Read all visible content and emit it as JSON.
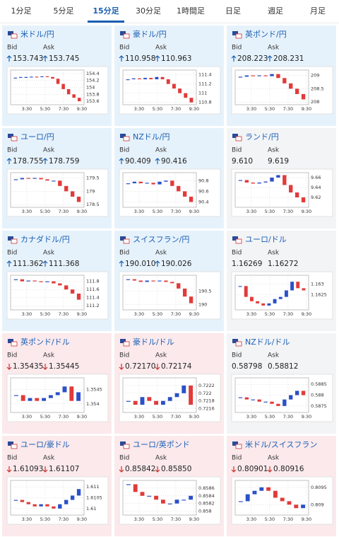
{
  "tabs": {
    "items": [
      "1分足",
      "5分足",
      "15分足",
      "30分足",
      "1時間足",
      "日足",
      "週足",
      "月足"
    ],
    "active": 2
  },
  "labels": {
    "bid": "Bid",
    "ask": "Ask"
  },
  "chart_xticks": [
    "3:30",
    "5:30",
    "7:30",
    "9:30"
  ],
  "tiles": [
    {
      "pair": "米ドル/円",
      "direction": "up",
      "bid": "153.743",
      "ask": "153.745",
      "ylim": [
        153.5,
        154.5
      ],
      "yticks": [
        154.4,
        154.2,
        154,
        153.8,
        153.6
      ],
      "closes": [
        154.28,
        154.3,
        154.3,
        154.31,
        154.3,
        154.32,
        154.3,
        154.25,
        154.1,
        153.95,
        153.8,
        153.7,
        153.6
      ]
    },
    {
      "pair": "豪ドル/円",
      "direction": "up",
      "bid": "110.958",
      "ask": "110.963",
      "ylim": [
        110.75,
        111.5
      ],
      "yticks": [
        111.4,
        111.2,
        111,
        110.8
      ],
      "closes": [
        111.3,
        111.32,
        111.3,
        111.33,
        111.3,
        111.35,
        111.3,
        111.2,
        111.1,
        111.0,
        110.9,
        110.8
      ]
    },
    {
      "pair": "英ポンド/円",
      "direction": "up",
      "bid": "208.223",
      "ask": "208.231",
      "ylim": [
        207.9,
        209.2
      ],
      "yticks": [
        209,
        208.5,
        208
      ],
      "closes": [
        208.95,
        209,
        208.98,
        209.0,
        208.97,
        209.05,
        208.9,
        208.7,
        208.5,
        208.3,
        208.1
      ]
    },
    {
      "pair": "ユーロ/円",
      "direction": "up",
      "bid": "178.755",
      "ask": "178.759",
      "ylim": [
        178.4,
        179.7
      ],
      "yticks": [
        179.5,
        179,
        178.5
      ],
      "closes": [
        179.45,
        179.5,
        179.48,
        179.5,
        179.45,
        179.4,
        179.4,
        179.2,
        179.0,
        178.8,
        178.6
      ]
    },
    {
      "pair": "NZドル/円",
      "direction": "up",
      "bid": "90.409",
      "ask": "90.416",
      "ylim": [
        90.3,
        90.95
      ],
      "yticks": [
        90.8,
        90.6,
        90.4
      ],
      "closes": [
        90.75,
        90.78,
        90.75,
        90.76,
        90.73,
        90.78,
        90.8,
        90.7,
        90.6,
        90.5,
        90.4
      ]
    },
    {
      "pair": "ランド/円",
      "direction": null,
      "bid": "9.610",
      "ask": "9.619",
      "ylim": [
        9.6,
        9.67
      ],
      "yticks": [
        9.66,
        9.64,
        9.62
      ],
      "closes": [
        9.655,
        9.65,
        9.648,
        9.65,
        9.652,
        9.66,
        9.665,
        9.645,
        9.63,
        9.62,
        9.61
      ]
    },
    {
      "pair": "カナダドル/円",
      "direction": "up",
      "bid": "111.362",
      "ask": "111.368",
      "ylim": [
        111.1,
        111.95
      ],
      "yticks": [
        111.8,
        111.6,
        111.4,
        111.2
      ],
      "closes": [
        111.85,
        111.8,
        111.82,
        111.8,
        111.78,
        111.8,
        111.75,
        111.7,
        111.6,
        111.5,
        111.35
      ]
    },
    {
      "pair": "スイスフラン/円",
      "direction": "up",
      "bid": "190.010",
      "ask": "190.026",
      "ylim": [
        189.8,
        191.1
      ],
      "yticks": [
        190.5,
        190
      ],
      "closes": [
        190.95,
        190.9,
        190.85,
        190.9,
        190.88,
        190.9,
        190.85,
        190.8,
        190.6,
        190.3,
        190.05
      ]
    },
    {
      "pair": "ユーロ/ドル",
      "direction": null,
      "bid": "1.16269",
      "ask": "1.16272",
      "ylim": [
        1.1618,
        1.1634
      ],
      "yticks": [
        1.163,
        1.1625
      ],
      "closes": [
        1.1629,
        1.1624,
        1.1622,
        1.1621,
        1.162,
        1.1621,
        1.1623,
        1.1624,
        1.1627,
        1.1631,
        1.1628,
        1.1627
      ]
    },
    {
      "pair": "英ポンド/ドル",
      "direction": "down",
      "bid": "1.35435",
      "ask": "1.35445",
      "ylim": [
        1.3537,
        1.3549
      ],
      "yticks": [
        1.3545,
        1.354
      ],
      "closes": [
        1.3543,
        1.3541,
        1.3542,
        1.3541,
        1.3542,
        1.3543,
        1.3544,
        1.3546,
        1.3541,
        1.3544
      ]
    },
    {
      "pair": "豪ドル/ドル",
      "direction": "down",
      "bid": "0.72170",
      "ask": "0.72174",
      "ylim": [
        0.7215,
        0.7224
      ],
      "yticks": [
        0.7222,
        0.722,
        0.7218,
        0.7216
      ],
      "closes": [
        0.7218,
        0.7217,
        0.7219,
        0.7218,
        0.7217,
        0.7218,
        0.7219,
        0.722,
        0.7222,
        0.7217
      ]
    },
    {
      "pair": "NZドル/ドル",
      "direction": null,
      "bid": "0.58798",
      "ask": "0.58812",
      "ylim": [
        0.5872,
        0.5888
      ],
      "yticks": [
        0.5885,
        0.588,
        0.5875
      ],
      "closes": [
        0.5879,
        0.5878,
        0.5878,
        0.5877,
        0.5877,
        0.5876,
        0.5875,
        0.5878,
        0.588,
        0.5882,
        0.588
      ]
    },
    {
      "pair": "ユーロ/豪ドル",
      "direction": "down",
      "bid": "1.61093",
      "ask": "1.61107",
      "ylim": [
        1.6097,
        1.6113
      ],
      "yticks": [
        1.611,
        1.6105,
        1.61
      ],
      "closes": [
        1.6104,
        1.6103,
        1.6102,
        1.6101,
        1.6102,
        1.6101,
        1.61,
        1.6102,
        1.6104,
        1.6106,
        1.6109
      ]
    },
    {
      "pair": "ユーロ/英ポンド",
      "direction": "down",
      "bid": "0.85842",
      "ask": "0.85850",
      "ylim": [
        0.8579,
        0.8588
      ],
      "yticks": [
        0.8586,
        0.8584,
        0.8582,
        0.858
      ],
      "closes": [
        0.8587,
        0.8585,
        0.8584,
        0.8584,
        0.8583,
        0.8582,
        0.8582,
        0.8583,
        0.8583,
        0.8584
      ]
    },
    {
      "pair": "米ドル/スイスフラン",
      "direction": "down",
      "bid": "0.80901",
      "ask": "0.80916",
      "ylim": [
        0.8087,
        0.8097
      ],
      "yticks": [
        0.8095,
        0.809
      ],
      "closes": [
        0.8091,
        0.8093,
        0.8094,
        0.8095,
        0.8094,
        0.8092,
        0.8091,
        0.809,
        0.8089,
        0.809
      ]
    }
  ]
}
